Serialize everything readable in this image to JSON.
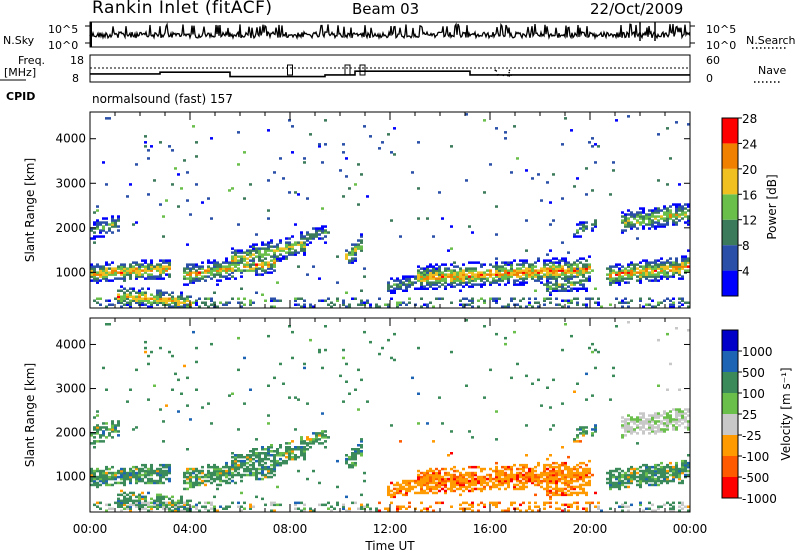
{
  "header": {
    "station": "Rankin Inlet (fitACF)",
    "beam": "Beam 03",
    "date": "22/Oct/2009"
  },
  "colors": {
    "power": [
      "#0000ff",
      "#2a4fa8",
      "#3b7a5a",
      "#6abf4b",
      "#f0c020",
      "#f08000",
      "#ff0000"
    ],
    "velocity": [
      "#ff0000",
      "#ff5a00",
      "#ff9a00",
      "#c8c8c8",
      "#6abf4b",
      "#3b8a5a",
      "#1e64b4",
      "#0000c8"
    ]
  },
  "chart_data": [
    {
      "type": "line",
      "panel": "noise",
      "left_label": "N.Sky",
      "right_label": "N.Search",
      "left_ticks": [
        "10^5",
        "10^0"
      ],
      "right_ticks": [
        "10^5",
        "10^0"
      ],
      "grid": false
    },
    {
      "type": "line",
      "panel": "frequency",
      "left_label_lines": [
        "Freq.",
        "[MHz]"
      ],
      "right_label": "Nave",
      "left_ticks": [
        "18",
        "8"
      ],
      "right_ticks": [
        "60",
        "0"
      ],
      "cpid_label": "CPID",
      "cpid_text": "normalsound (fast)  157",
      "freq_segments": [
        {
          "t0": 0.0,
          "t1": 2.8,
          "v": 11
        },
        {
          "t0": 2.8,
          "t1": 5.6,
          "v": 12
        },
        {
          "t0": 5.6,
          "t1": 9.4,
          "v": 10
        },
        {
          "t0": 9.4,
          "t1": 10.6,
          "v": 11
        },
        {
          "t0": 10.6,
          "t1": 15.2,
          "v": 12
        },
        {
          "t0": 15.2,
          "t1": 24.0,
          "v": 11
        }
      ],
      "grid": false
    },
    {
      "type": "heatmap",
      "panel": "power",
      "ylabel": "Slant Range [km]",
      "y_ticks": [
        "1000",
        "2000",
        "3000",
        "4000"
      ],
      "ylim": [
        200,
        4600
      ],
      "colorbar_label": "Power [dB]",
      "colorbar_ticks": [
        "4",
        "8",
        "12",
        "16",
        "20",
        "24",
        "28"
      ],
      "grid": false
    },
    {
      "type": "heatmap",
      "panel": "velocity",
      "ylabel": "Slant Range [km]",
      "y_ticks": [
        "1000",
        "2000",
        "3000",
        "4000"
      ],
      "ylim": [
        200,
        4600
      ],
      "colorbar_label": "Velocity [m s⁻¹]",
      "colorbar_ticks": [
        "1000",
        "500",
        "100",
        "25",
        "-25",
        "-100",
        "-500",
        "-1000"
      ],
      "x_ticks": [
        "00:00",
        "04:00",
        "08:00",
        "12:00",
        "16:00",
        "20:00",
        "00:00"
      ],
      "xlabel": "Time UT",
      "grid": false
    }
  ]
}
